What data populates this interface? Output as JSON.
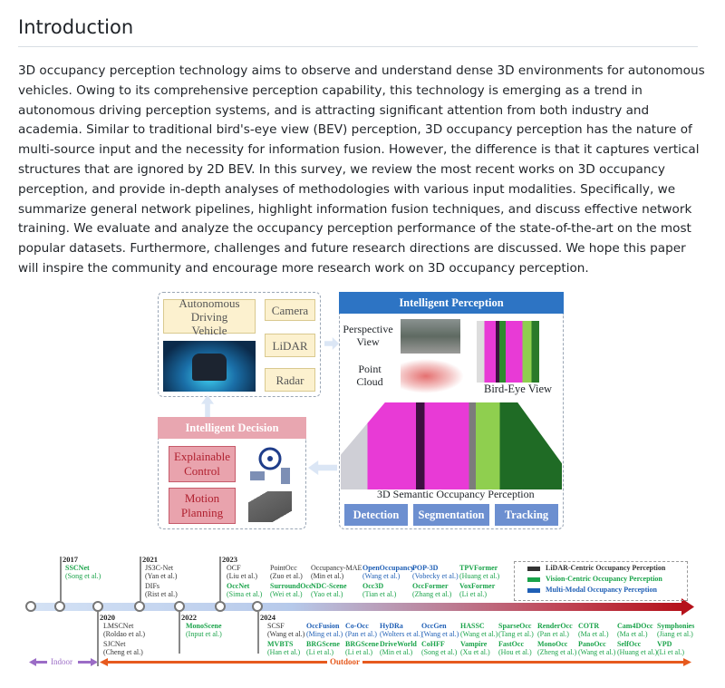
{
  "heading": "Introduction",
  "abstract": "3D occupancy perception technology aims to observe and understand dense 3D environments for autonomous vehicles. Owing to its comprehensive perception capability, this technology is emerging as a trend in autonomous driving perception systems, and is attracting significant attention from both industry and academia. Similar to traditional bird's-eye view (BEV) perception, 3D occupancy perception has the nature of multi-source input and the necessity for information fusion. However, the difference is that it captures vertical structures that are ignored by 2D BEV. In this survey, we review the most recent works on 3D occupancy perception, and provide in-depth analyses of methodologies with various input modalities. Specifically, we summarize general network pipelines, highlight information fusion techniques, and discuss effective network training. We evaluate and analyze the occupancy perception performance of the state-of-the-art on the most popular datasets. Furthermore, challenges and future research directions are discussed. We hope this paper will inspire the community and encourage more research work on 3D occupancy perception.",
  "figure1": {
    "vehicle": "Autonomous Driving Vehicle",
    "camera": "Camera",
    "lidar": "LiDAR",
    "radar": "Radar",
    "perception_title": "Intelligent Perception",
    "perspective": "Perspective View",
    "point_cloud": "Point Cloud",
    "bev": "Bird-Eye View",
    "occ3d": "3D Semantic Occupancy Perception",
    "detection": "Detection",
    "segmentation": "Segmentation",
    "tracking": "Tracking",
    "decision_title": "Intelligent Decision",
    "explainable": "Explainable Control",
    "motion": "Motion Planning"
  },
  "timeline": {
    "colors": {
      "lidar": "#333333",
      "vision": "#1aa34a",
      "multi": "#1f5fb5"
    },
    "legend": [
      {
        "type": "lidar",
        "label": "LiDAR-Centric Occupancy Perception"
      },
      {
        "type": "vision",
        "label": "Vision-Centric Occupancy Perception"
      },
      {
        "type": "multi",
        "label": "Multi-Modal Occupancy Perception"
      }
    ],
    "years": [
      "2017",
      "2020",
      "2021",
      "2022",
      "2023",
      "2024"
    ],
    "indoor": "Indoor",
    "outdoor": "Outdoor",
    "items": [
      {
        "name": "SSCNet",
        "author": "(Song et al.)",
        "type": "vision"
      },
      {
        "name": "JS3C-Net",
        "author": "(Yan et al.)",
        "type": "lidar"
      },
      {
        "name": "DIFs",
        "author": "(Rist et al.)",
        "type": "lidar"
      },
      {
        "name": "OCF",
        "author": "(Liu et al.)",
        "type": "lidar"
      },
      {
        "name": "OccNet",
        "author": "(Sima et al.)",
        "type": "vision"
      },
      {
        "name": "PointOcc",
        "author": "(Zuo et al.)",
        "type": "lidar"
      },
      {
        "name": "SurroundOcc",
        "author": "(Wei et al.)",
        "type": "vision"
      },
      {
        "name": "Occupancy-MAE",
        "author": "(Min et al.)",
        "type": "lidar"
      },
      {
        "name": "NDC-Scene",
        "author": "(Yao et al.)",
        "type": "vision"
      },
      {
        "name": "OpenOccupancy",
        "author": "(Wang et al.)",
        "type": "multi"
      },
      {
        "name": "Occ3D",
        "author": "(Tian et al.)",
        "type": "vision"
      },
      {
        "name": "POP-3D",
        "author": "(Vobecky et al.)",
        "type": "multi"
      },
      {
        "name": "OccFormer",
        "author": "(Zhang et al.)",
        "type": "vision"
      },
      {
        "name": "TPVFormer",
        "author": "(Huang et al.)",
        "type": "vision"
      },
      {
        "name": "VoxFormer",
        "author": "(Li et al.)",
        "type": "vision"
      },
      {
        "name": "LMSCNet",
        "author": "(Roldao et al.)",
        "type": "lidar"
      },
      {
        "name": "SJCNet",
        "author": "(Cheng et al.)",
        "type": "lidar"
      },
      {
        "name": "MonoScene",
        "author": "(Input et al.)",
        "type": "vision"
      },
      {
        "name": "SCSF",
        "author": "(Wang et al.)",
        "type": "lidar"
      },
      {
        "name": "MVBTS",
        "author": "(Han et al.)",
        "type": "vision"
      },
      {
        "name": "OccFusion",
        "author": "(Ming et al.)",
        "type": "multi"
      },
      {
        "name": "BRGScene",
        "author": "(Li et al.)",
        "type": "vision"
      },
      {
        "name": "Co-Occ",
        "author": "(Pan et al.)",
        "type": "multi"
      },
      {
        "name": "BRGScene",
        "author": "(Li et al.)",
        "type": "vision"
      },
      {
        "name": "HyDRa",
        "author": "(Wolters et al.)",
        "type": "multi"
      },
      {
        "name": "DriveWorld",
        "author": "(Min et al.)",
        "type": "vision"
      },
      {
        "name": "OccGen",
        "author": "(Wang et al.)",
        "type": "multi"
      },
      {
        "name": "CoHFF",
        "author": "(Song et al.)",
        "type": "vision"
      },
      {
        "name": "HASSC",
        "author": "(Wang et al.)",
        "type": "vision"
      },
      {
        "name": "Vampire",
        "author": "(Xu et al.)",
        "type": "vision"
      },
      {
        "name": "SparseOcc",
        "author": "(Tang et al.)",
        "type": "vision"
      },
      {
        "name": "FastOcc",
        "author": "(Hou et al.)",
        "type": "vision"
      },
      {
        "name": "RenderOcc",
        "author": "(Pan et al.)",
        "type": "vision"
      },
      {
        "name": "MonoOcc",
        "author": "(Zheng et al.)",
        "type": "vision"
      },
      {
        "name": "COTR",
        "author": "(Ma et al.)",
        "type": "vision"
      },
      {
        "name": "PanoOcc",
        "author": "(Wang et al.)",
        "type": "vision"
      },
      {
        "name": "Cam4DOcc",
        "author": "(Ma et al.)",
        "type": "vision"
      },
      {
        "name": "SelfOcc",
        "author": "(Huang et al.)",
        "type": "vision"
      },
      {
        "name": "Symphonies",
        "author": "(Jiang et al.)",
        "type": "vision"
      },
      {
        "name": "VPD",
        "author": "(Li et al.)",
        "type": "vision"
      }
    ]
  }
}
